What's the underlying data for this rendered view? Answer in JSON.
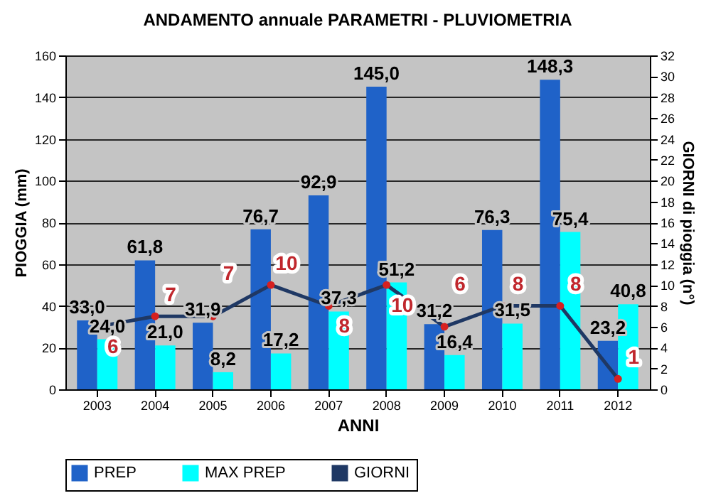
{
  "chart_data": {
    "type": "bar",
    "title": "ANDAMENTO annuale PARAMETRI - PLUVIOMETRIA",
    "xlabel": "ANNI",
    "ylabel": "PIOGGIA   (mm)",
    "y2label": "GIORNI di pioggia   (n°)",
    "categories": [
      "2003",
      "2004",
      "2005",
      "2006",
      "2007",
      "2008",
      "2009",
      "2010",
      "2011",
      "2012"
    ],
    "series": [
      {
        "name": "PREP",
        "color": "#1f62c8",
        "values": [
          33.0,
          61.8,
          31.9,
          76.7,
          92.9,
          145.0,
          31.2,
          76.3,
          148.3,
          23.2
        ],
        "value_labels": [
          "33,0",
          "61,8",
          "31,9",
          "76,7",
          "92,9",
          "145,0",
          "31,2",
          "76,3",
          "148,3",
          "23,2"
        ]
      },
      {
        "name": "MAX PREP",
        "color": "#00ffff",
        "values": [
          24.0,
          21.0,
          8.2,
          17.2,
          37.3,
          51.2,
          16.4,
          31.5,
          75.4,
          40.8
        ],
        "value_labels": [
          "24,0",
          "21,0",
          "8,2",
          "17,2",
          "37,3",
          "51,2",
          "16,4",
          "31,5",
          "75,4",
          "40,8"
        ]
      },
      {
        "name": "GIORNI",
        "type": "line",
        "axis": "y2",
        "color": "#1f3864",
        "marker": "circle",
        "values": [
          6,
          7,
          7,
          10,
          8,
          10,
          6,
          8,
          8,
          1
        ],
        "value_labels": [
          "6",
          "7",
          "7",
          "10",
          "8",
          "10",
          "6",
          "8",
          "8",
          "1"
        ]
      }
    ],
    "ylim": [
      0,
      160
    ],
    "yticks": [
      0,
      20,
      40,
      60,
      80,
      100,
      120,
      140,
      160
    ],
    "y2lim": [
      0,
      32
    ],
    "y2ticks": [
      0,
      2,
      4,
      6,
      8,
      10,
      12,
      14,
      16,
      18,
      20,
      22,
      24,
      26,
      28,
      30,
      32
    ],
    "grid": "y",
    "legend": "bottom"
  }
}
